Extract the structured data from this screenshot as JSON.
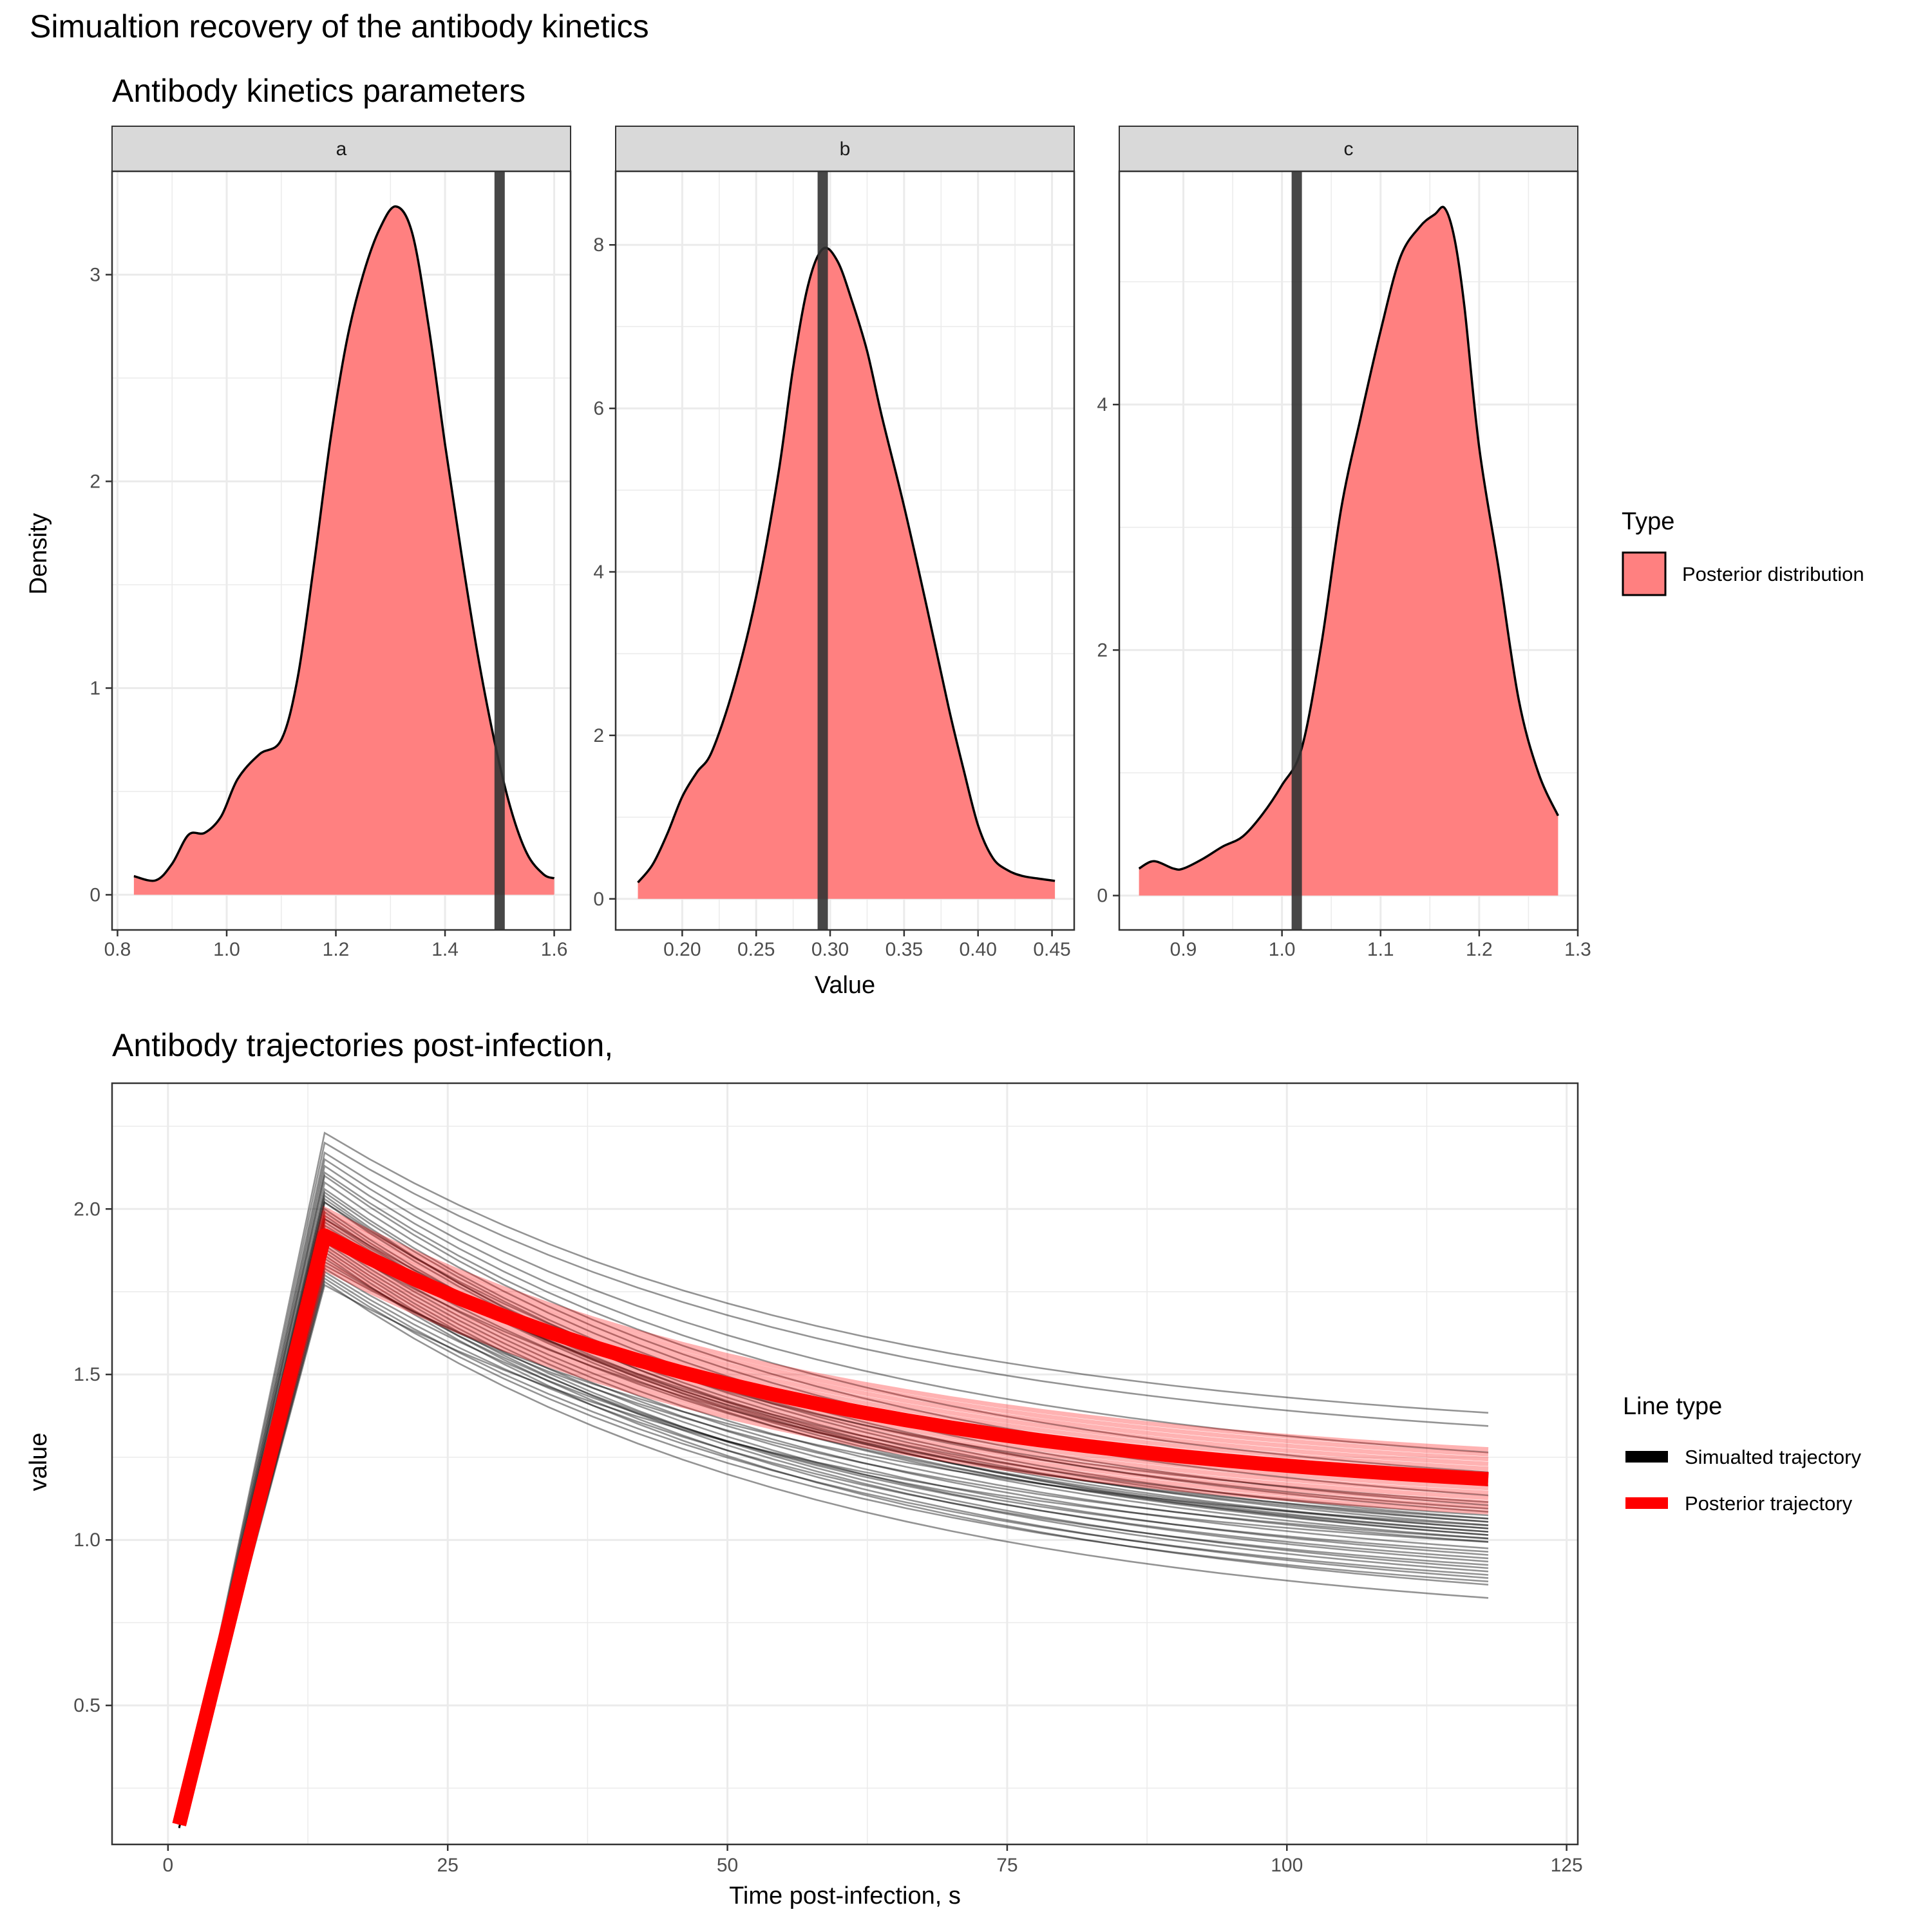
{
  "figure": {
    "title": "Simualtion recovery of the antibody kinetics"
  },
  "colors": {
    "posterior_fill": "#FF8080",
    "true_value_line": "#333333",
    "simulated": "#000000",
    "posterior_line": "#FF0000",
    "grid": "#EBEBEB",
    "strip_bg": "#D9D9D9"
  },
  "chart_data": [
    {
      "type": "area",
      "title": "Antibody kinetics parameters",
      "xlabel": "Value",
      "ylabel": "Density",
      "grid": true,
      "legend": {
        "title": "Type",
        "placement": "right",
        "entries": [
          "Posterior distribution"
        ]
      },
      "panels": [
        {
          "strip": "a",
          "true_value": 1.5,
          "xlim": [
            0.79,
            1.63
          ],
          "ylim": [
            -0.17,
            3.5
          ],
          "xticks": [
            0.8,
            1.0,
            1.2,
            1.4,
            1.6
          ],
          "xtick_labels": [
            "0.8",
            "1.0",
            "1.2",
            "1.4",
            "1.6"
          ],
          "yticks": [
            0,
            1,
            2,
            3
          ],
          "ytick_labels": [
            "0",
            "1",
            "2",
            "3"
          ],
          "density": {
            "x": [
              0.83,
              0.87,
              0.9,
              0.93,
              0.96,
              0.99,
              1.02,
              1.06,
              1.1,
              1.13,
              1.16,
              1.19,
              1.22,
              1.25,
              1.28,
              1.31,
              1.34,
              1.37,
              1.4,
              1.43,
              1.46,
              1.49,
              1.52,
              1.55,
              1.58,
              1.6
            ],
            "y": [
              0.09,
              0.07,
              0.15,
              0.29,
              0.3,
              0.38,
              0.56,
              0.68,
              0.75,
              1.05,
              1.6,
              2.2,
              2.68,
              3.0,
              3.22,
              3.33,
              3.2,
              2.75,
              2.18,
              1.65,
              1.16,
              0.75,
              0.42,
              0.2,
              0.1,
              0.08
            ]
          }
        },
        {
          "strip": "b",
          "true_value": 0.295,
          "xlim": [
            0.155,
            0.465
          ],
          "ylim": [
            -0.38,
            8.9
          ],
          "xticks": [
            0.2,
            0.25,
            0.3,
            0.35,
            0.4,
            0.45
          ],
          "xtick_labels": [
            "0.20",
            "0.25",
            "0.30",
            "0.35",
            "0.40",
            "0.45"
          ],
          "yticks": [
            0,
            2,
            4,
            6,
            8
          ],
          "ytick_labels": [
            "0",
            "2",
            "4",
            "6",
            "8"
          ],
          "density": {
            "x": [
              0.17,
              0.18,
              0.19,
              0.2,
              0.21,
              0.22,
              0.235,
              0.25,
              0.265,
              0.275,
              0.285,
              0.295,
              0.305,
              0.315,
              0.325,
              0.335,
              0.35,
              0.365,
              0.38,
              0.39,
              0.4,
              0.41,
              0.42,
              0.43,
              0.44,
              0.452
            ],
            "y": [
              0.2,
              0.42,
              0.8,
              1.25,
              1.55,
              1.8,
              2.6,
              3.7,
              5.2,
              6.5,
              7.5,
              7.95,
              7.8,
              7.3,
              6.7,
              5.9,
              4.8,
              3.6,
              2.35,
              1.6,
              0.9,
              0.5,
              0.35,
              0.28,
              0.25,
              0.22
            ]
          }
        },
        {
          "strip": "c",
          "true_value": 1.015,
          "xlim": [
            0.835,
            1.3
          ],
          "ylim": [
            -0.28,
            5.9
          ],
          "xticks": [
            0.9,
            1.0,
            1.1,
            1.2,
            1.3
          ],
          "xtick_labels": [
            "0.9",
            "1.0",
            "1.1",
            "1.2",
            "1.3"
          ],
          "yticks": [
            0,
            2,
            4
          ],
          "ytick_labels": [
            "0",
            "2",
            "4"
          ],
          "density": {
            "x": [
              0.855,
              0.87,
              0.89,
              0.9,
              0.92,
              0.94,
              0.96,
              0.98,
              1.0,
              1.02,
              1.04,
              1.06,
              1.08,
              1.1,
              1.12,
              1.14,
              1.155,
              1.165,
              1.175,
              1.185,
              1.2,
              1.22,
              1.24,
              1.26,
              1.28
            ],
            "y": [
              0.22,
              0.28,
              0.22,
              0.22,
              0.3,
              0.4,
              0.48,
              0.66,
              0.9,
              1.2,
              2.05,
              3.15,
              3.9,
              4.6,
              5.2,
              5.45,
              5.55,
              5.6,
              5.35,
              4.8,
              3.65,
              2.65,
              1.6,
              1.0,
              0.65
            ]
          }
        }
      ]
    },
    {
      "type": "line",
      "title": "Antibody trajectories post-infection,",
      "xlabel": "Time post-infection, s",
      "ylabel": "value",
      "xlim": [
        -5,
        126
      ],
      "ylim": [
        0.08,
        2.38
      ],
      "xticks": [
        0,
        25,
        50,
        75,
        100,
        125
      ],
      "xtick_labels": [
        "0",
        "25",
        "50",
        "75",
        "100",
        "125"
      ],
      "yticks": [
        0.5,
        1.0,
        1.5,
        2.0
      ],
      "ytick_labels": [
        "0.5",
        "1.0",
        "1.5",
        "2.0"
      ],
      "grid": true,
      "legend": {
        "title": "Line type",
        "placement": "right",
        "entries": [
          "Simualted trajectory",
          "Posterior trajectory"
        ]
      },
      "simulated": {
        "start": [
          1,
          0.13
        ],
        "peak_time": 14,
        "trajectories": [
          {
            "peak": 2.23,
            "end": 1.38
          },
          {
            "peak": 2.2,
            "end": 1.34
          },
          {
            "peak": 2.17,
            "end": 1.26
          },
          {
            "peak": 2.15,
            "end": 1.2
          },
          {
            "peak": 2.13,
            "end": 1.16
          },
          {
            "peak": 2.11,
            "end": 1.13
          },
          {
            "peak": 2.1,
            "end": 1.1
          },
          {
            "peak": 2.08,
            "end": 1.08
          },
          {
            "peak": 2.06,
            "end": 1.06
          },
          {
            "peak": 2.05,
            "end": 1.05
          },
          {
            "peak": 2.03,
            "end": 1.04
          },
          {
            "peak": 2.02,
            "end": 1.03
          },
          {
            "peak": 2.0,
            "end": 1.02
          },
          {
            "peak": 1.99,
            "end": 1.01
          },
          {
            "peak": 1.98,
            "end": 1.0
          },
          {
            "peak": 1.97,
            "end": 1.03
          },
          {
            "peak": 1.96,
            "end": 1.05
          },
          {
            "peak": 1.95,
            "end": 1.07
          },
          {
            "peak": 1.94,
            "end": 1.02
          },
          {
            "peak": 1.93,
            "end": 0.99
          },
          {
            "peak": 1.92,
            "end": 0.97
          },
          {
            "peak": 1.91,
            "end": 0.95
          },
          {
            "peak": 1.9,
            "end": 0.93
          },
          {
            "peak": 1.89,
            "end": 0.91
          },
          {
            "peak": 1.88,
            "end": 0.9
          },
          {
            "peak": 1.87,
            "end": 0.88
          },
          {
            "peak": 1.86,
            "end": 0.86
          },
          {
            "peak": 1.84,
            "end": 1.0
          },
          {
            "peak": 1.83,
            "end": 1.04
          },
          {
            "peak": 1.82,
            "end": 0.96
          },
          {
            "peak": 1.81,
            "end": 0.92
          },
          {
            "peak": 1.8,
            "end": 0.89
          },
          {
            "peak": 1.79,
            "end": 0.87
          },
          {
            "peak": 1.78,
            "end": 0.82
          },
          {
            "peak": 1.77,
            "end": 0.99
          },
          {
            "peak": 2.02,
            "end": 1.09
          },
          {
            "peak": 1.97,
            "end": 1.11
          },
          {
            "peak": 2.04,
            "end": 1.01
          },
          {
            "peak": 1.91,
            "end": 1.06
          },
          {
            "peak": 1.85,
            "end": 0.94
          }
        ]
      },
      "posterior": {
        "start": [
          1,
          0.14
        ],
        "peak_time": 14,
        "peak": 1.92,
        "end": 1.18,
        "band_peak": [
          1.82,
          2.0
        ],
        "band_end": [
          1.08,
          1.27
        ]
      }
    }
  ]
}
